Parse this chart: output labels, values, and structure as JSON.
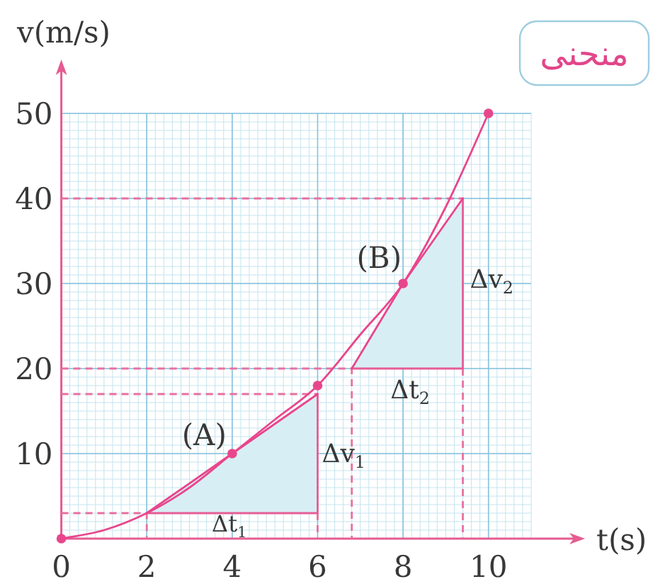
{
  "chart_data": {
    "type": "line",
    "xlabel": "t(s)",
    "ylabel": "v(m/s)",
    "xlim": [
      0,
      11
    ],
    "ylim": [
      0,
      50
    ],
    "xticks": [
      0,
      2,
      4,
      6,
      8,
      10
    ],
    "yticks": [
      10,
      20,
      30,
      40,
      50
    ],
    "grid": true,
    "series": [
      {
        "type": "line",
        "color": "#e8709f",
        "line_style": "dashed",
        "x": [
          0,
          2,
          2
        ],
        "values": [
          3,
          3,
          0
        ]
      },
      {
        "type": "line",
        "color": "#e8709f",
        "line_style": "dashed",
        "x": [
          0,
          6
        ],
        "values": [
          17,
          17
        ]
      },
      {
        "type": "line",
        "color": "#e8709f",
        "line_style": "dashed",
        "x": [
          6,
          6
        ],
        "values": [
          3,
          0
        ]
      },
      {
        "type": "line",
        "color": "#e8709f",
        "line_style": "dashed",
        "x": [
          0,
          6.8,
          6.8
        ],
        "values": [
          20,
          20,
          0
        ]
      },
      {
        "type": "line",
        "color": "#e8709f",
        "line_style": "dashed",
        "x": [
          9.4,
          9.4
        ],
        "values": [
          20,
          0
        ]
      },
      {
        "type": "line",
        "color": "#e8709f",
        "line_style": "dashed",
        "x": [
          0,
          9.4
        ],
        "values": [
          40,
          40
        ]
      },
      {
        "type": "line",
        "color": "#e65c94",
        "x": [
          2,
          6,
          6
        ],
        "values": [
          3,
          3,
          17
        ]
      },
      {
        "type": "line",
        "color": "#e65c94",
        "x": [
          6.8,
          9.4,
          9.4
        ],
        "values": [
          20,
          20,
          40
        ]
      },
      {
        "type": "line",
        "color": "#e8468c",
        "x": [
          2,
          4,
          6
        ],
        "values": [
          3,
          10,
          17
        ],
        "lower": [
          3,
          3,
          3
        ],
        "upper": [
          3,
          10,
          17
        ]
      },
      {
        "type": "line",
        "color": "#e8468c",
        "x": [
          6.8,
          8,
          9.4
        ],
        "values": [
          20,
          30,
          40
        ],
        "lower": [
          20,
          20,
          20
        ],
        "upper": [
          20,
          30,
          40
        ]
      },
      {
        "type": "line",
        "color": "#e8468c",
        "x": [
          0,
          1,
          2,
          3,
          4,
          5,
          6,
          7,
          8,
          9,
          10
        ],
        "values": [
          0,
          1,
          3,
          6,
          10,
          14,
          18,
          24,
          30,
          39,
          50
        ]
      },
      {
        "type": "scatter",
        "color": "#e8468c",
        "marker": "circle",
        "x": [
          0,
          4,
          6,
          8,
          10
        ],
        "values": [
          0,
          10,
          18,
          30,
          50
        ]
      }
    ],
    "annotations": [
      {
        "text": "(A)",
        "x": 4,
        "y": 10
      },
      {
        "text": "(B)",
        "x": 8,
        "y": 30
      },
      {
        "text": "Δt$_{1}$",
        "x": 4,
        "y": 3
      },
      {
        "text": "Δv$_{1}$",
        "x": 6,
        "y": 10
      },
      {
        "text": "Δt$_{2}$",
        "x": 8.1,
        "y": 20
      },
      {
        "text": "Δv$_{2}$",
        "x": 9.4,
        "y": 30
      },
      "منحنى"
    ]
  }
}
